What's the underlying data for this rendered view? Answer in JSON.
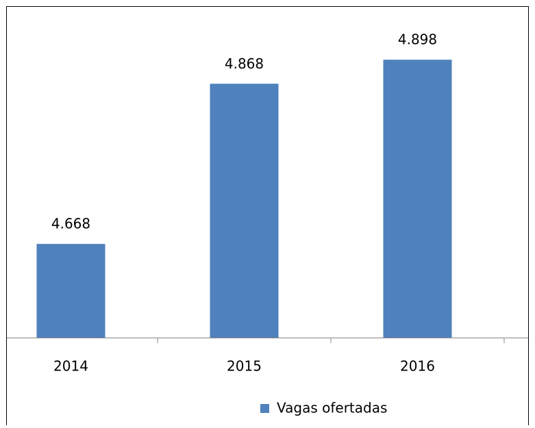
{
  "chart_data": {
    "type": "bar",
    "categories": [
      "2014",
      "2015",
      "2016"
    ],
    "series": [
      {
        "name": "Vagas ofertadas",
        "color": "#4f81bd",
        "values": [
          4668,
          4868,
          4898
        ],
        "value_labels": [
          "4.668",
          "4.868",
          "4.898"
        ]
      }
    ],
    "ylim": [
      4551,
      4964
    ],
    "legend": "bottom"
  }
}
